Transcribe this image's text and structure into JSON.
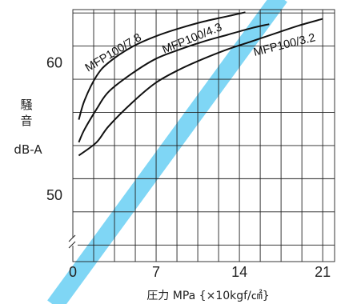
{
  "chart_data": {
    "type": "line",
    "title": "",
    "ylabel": [
      "騒",
      "音"
    ],
    "yunit": "dB-A",
    "xlabel": "圧力 MPa {×10kgf/㎠}",
    "xlim": [
      0,
      22
    ],
    "ylim": [
      45,
      64
    ],
    "xticks": [
      {
        "value": 0,
        "label": "0"
      },
      {
        "value": 7,
        "label": "7"
      },
      {
        "value": 14,
        "label": "14"
      },
      {
        "value": 21,
        "label": "21"
      }
    ],
    "yticks": [
      {
        "value": 50,
        "label": "50"
      },
      {
        "value": 60,
        "label": "60"
      }
    ],
    "x_grid_step": 1.75,
    "y_grid_step": 2.5,
    "series": [
      {
        "name": "MFP100/7.8",
        "x": [
          0.5,
          1,
          2,
          3,
          5,
          7,
          9,
          11,
          13,
          14.5
        ],
        "y": [
          55.7,
          57.2,
          59.0,
          60.0,
          61.2,
          62.0,
          62.6,
          63.1,
          63.5,
          63.8
        ]
      },
      {
        "name": "MFP100/4.3",
        "x": [
          0.5,
          1,
          2,
          3,
          5,
          7,
          9,
          11,
          13,
          15,
          16.5
        ],
        "y": [
          54.0,
          55.0,
          56.5,
          57.8,
          59.2,
          60.3,
          61.0,
          61.6,
          62.1,
          62.6,
          62.9
        ]
      },
      {
        "name": "MFP100/3.2",
        "x": [
          0.5,
          2,
          3,
          5,
          7,
          9,
          11,
          13,
          15,
          17,
          19,
          21
        ],
        "y": [
          53.0,
          54.0,
          55.2,
          57.0,
          58.5,
          59.5,
          60.3,
          61.0,
          61.6,
          62.2,
          62.8,
          63.3
        ]
      }
    ],
    "grid": true,
    "legend": "none",
    "colors": {
      "line": "#111111",
      "grid": "#222222",
      "highlight": "#7fd6f5"
    }
  }
}
